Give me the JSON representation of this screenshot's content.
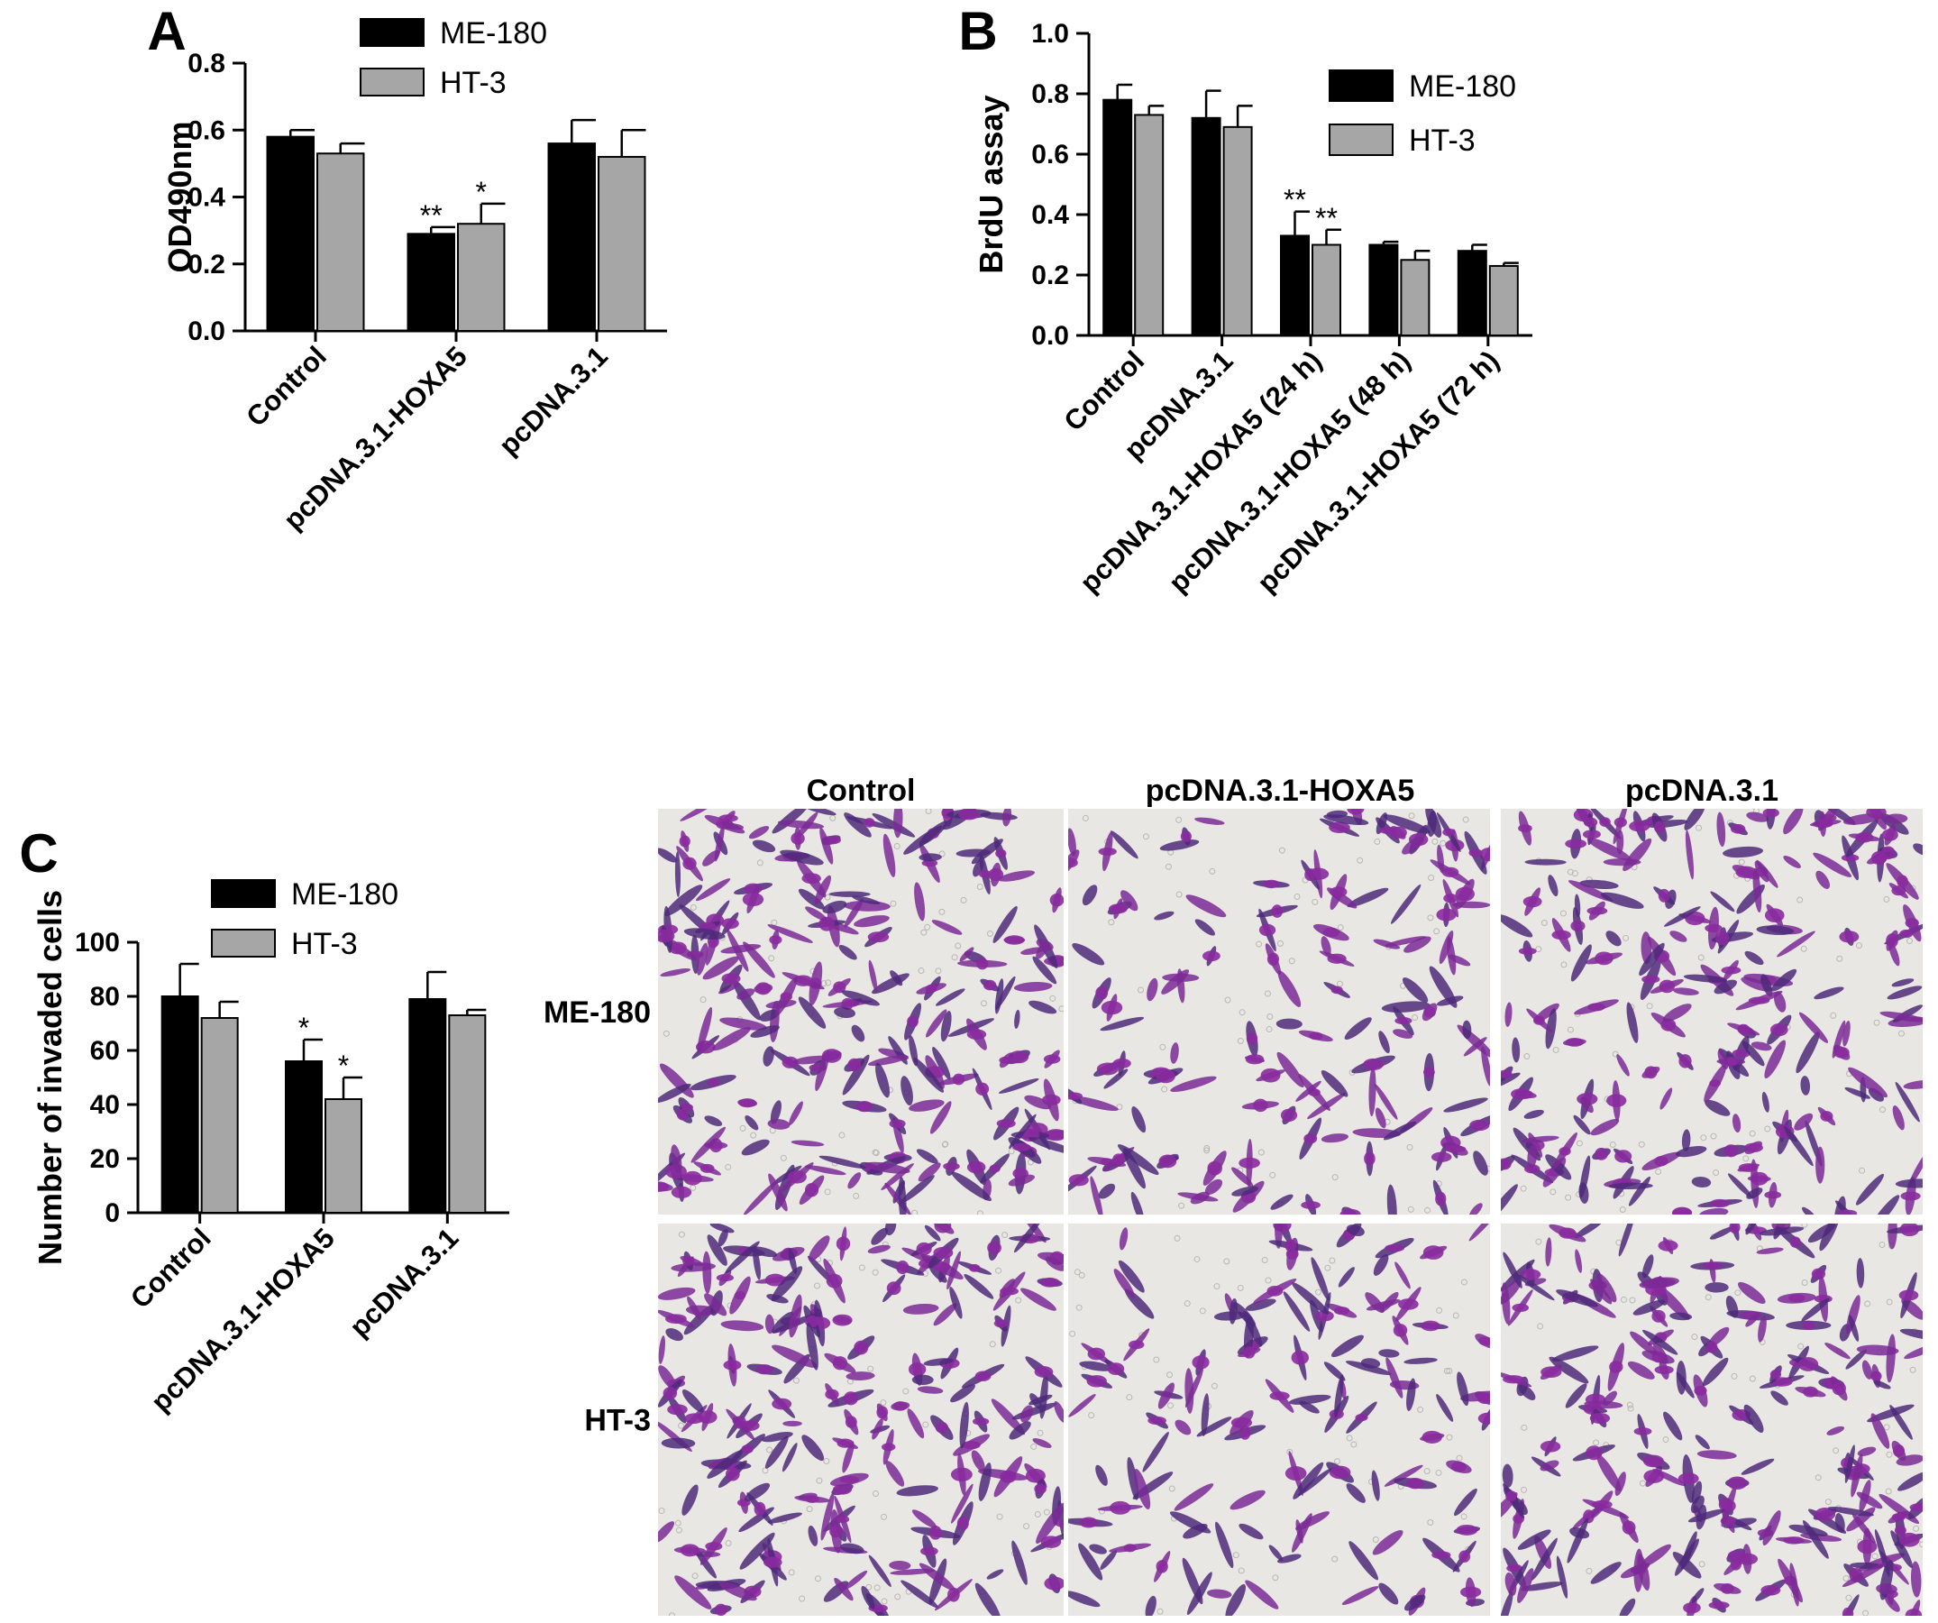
{
  "colors": {
    "me180": "#000000",
    "ht3": "#a6a6a6",
    "stain": "#8a2a9e",
    "background": "#e9e7e3"
  },
  "chart_data": [
    {
      "panel": "A",
      "type": "bar",
      "categories": [
        "Control",
        "pcDNA.3.1-HOXA5",
        "pcDNA.3.1"
      ],
      "ylabel": "OD490nm",
      "ylim": [
        0,
        0.8
      ],
      "yticks": [
        "0.0",
        "0.2",
        "0.4",
        "0.6",
        "0.8"
      ],
      "legend": "top-center",
      "series": [
        {
          "name": "ME-180",
          "values": [
            0.58,
            0.29,
            0.56
          ],
          "errors": [
            0.02,
            0.02,
            0.07
          ],
          "sig": [
            "",
            "**",
            ""
          ]
        },
        {
          "name": "HT-3",
          "values": [
            0.53,
            0.32,
            0.52
          ],
          "errors": [
            0.03,
            0.06,
            0.08
          ],
          "sig": [
            "",
            "*",
            ""
          ]
        }
      ]
    },
    {
      "panel": "B",
      "type": "bar",
      "categories": [
        "Control",
        "pcDNA.3.1",
        "pcDNA.3.1-HOXA5 (24 h)",
        "pcDNA.3.1-HOXA5 (48 h)",
        "pcDNA.3.1-HOXA5 (72 h)"
      ],
      "ylabel": "BrdU assay",
      "ylim": [
        0,
        1.0
      ],
      "yticks": [
        "0.0",
        "0.2",
        "0.4",
        "0.6",
        "0.8",
        "1.0"
      ],
      "legend": "top-right",
      "series": [
        {
          "name": "ME-180",
          "values": [
            0.78,
            0.72,
            0.33,
            0.3,
            0.28
          ],
          "errors": [
            0.05,
            0.09,
            0.08,
            0.01,
            0.02
          ],
          "sig": [
            "",
            "",
            "**",
            "",
            ""
          ]
        },
        {
          "name": "HT-3",
          "values": [
            0.73,
            0.69,
            0.3,
            0.25,
            0.23
          ],
          "errors": [
            0.03,
            0.07,
            0.05,
            0.03,
            0.01
          ],
          "sig": [
            "",
            "",
            "**",
            "",
            ""
          ]
        }
      ]
    },
    {
      "panel": "C",
      "type": "bar",
      "categories": [
        "Control",
        "pcDNA.3.1-HOXA5",
        "pcDNA.3.1"
      ],
      "ylabel": "Number of invaded cells",
      "ylim": [
        0,
        100
      ],
      "yticks": [
        "0",
        "20",
        "40",
        "60",
        "80",
        "100"
      ],
      "legend": "top-center",
      "series": [
        {
          "name": "ME-180",
          "values": [
            80,
            56,
            79
          ],
          "errors": [
            12,
            8,
            10
          ],
          "sig": [
            "",
            "*",
            ""
          ]
        },
        {
          "name": "HT-3",
          "values": [
            72,
            42,
            73
          ],
          "errors": [
            6,
            8,
            2
          ],
          "sig": [
            "",
            "*",
            ""
          ]
        }
      ]
    }
  ],
  "micrographs": {
    "columns": [
      "Control",
      "pcDNA.3.1-HOXA5",
      "pcDNA.3.1"
    ],
    "rows": [
      "ME-180",
      "HT-3"
    ],
    "stain_density": [
      [
        0.85,
        0.55,
        0.8
      ],
      [
        0.8,
        0.5,
        0.85
      ]
    ]
  }
}
